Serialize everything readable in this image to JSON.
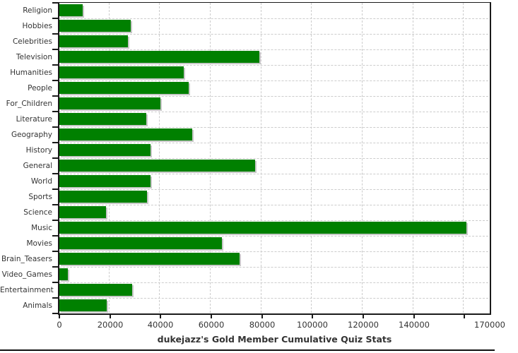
{
  "chart_data": {
    "type": "bar",
    "orientation": "horizontal",
    "title": "dukejazz's Gold Member Cumulative Quiz Stats",
    "categories": [
      "Religion",
      "Hobbies",
      "Celebrities",
      "Television",
      "Humanities",
      "People",
      "For_Children",
      "Literature",
      "Geography",
      "History",
      "General",
      "World",
      "Sports",
      "Science",
      "Music",
      "Movies",
      "Brain_Teasers",
      "Video_Games",
      "Entertainment",
      "Animals"
    ],
    "values": [
      9200,
      28100,
      27200,
      78900,
      49000,
      51000,
      39900,
      34300,
      52400,
      36100,
      77200,
      36000,
      34500,
      18400,
      160800,
      64100,
      71300,
      3300,
      28700,
      18700
    ],
    "xlim": [
      0,
      170000
    ],
    "x_ticks": [
      {
        "value": 0,
        "label": "0"
      },
      {
        "value": 20000,
        "label": "20000"
      },
      {
        "value": 40000,
        "label": "40000"
      },
      {
        "value": 60000,
        "label": "60000"
      },
      {
        "value": 80000,
        "label": "80000"
      },
      {
        "value": 100000,
        "label": "100000"
      },
      {
        "value": 120000,
        "label": "120000"
      },
      {
        "value": 140000,
        "label": "140000"
      },
      {
        "value": 160000,
        "label": ""
      },
      {
        "value": 170000,
        "label": "170000"
      }
    ],
    "grid": {
      "vertical": "at-x-ticks",
      "horizontal": "at-category-boundaries",
      "style": "dashed"
    },
    "legend": "none",
    "colors": {
      "bar": "#008000",
      "bar_shadow": "#c8c8c8",
      "gridline": "#cccccc",
      "axis": "#1a1a1a",
      "tick_label": "#333333",
      "title": "#333333"
    }
  }
}
